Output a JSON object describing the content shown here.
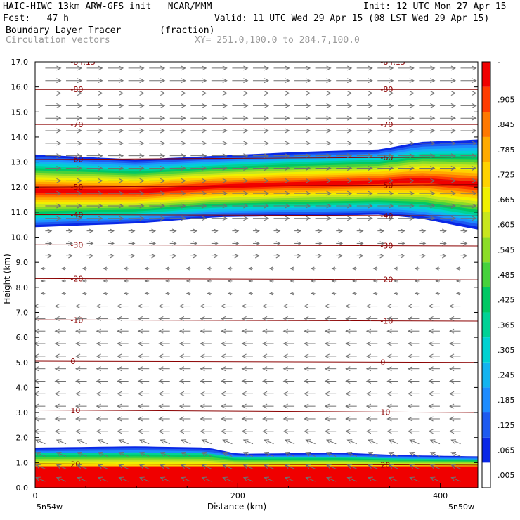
{
  "header": {
    "model_line": "HAIC-HIWC 13km ARW-GFS init   NCAR/MMM",
    "init": "Init: 12 UTC Mon 27 Apr 15",
    "fcst": "Fcst:   47 h",
    "valid": "Valid: 11 UTC Wed 29 Apr 15 (08 LST Wed 29 Apr 15)",
    "field": "Boundary Layer Tracer       (fraction)",
    "vectors": "Circulation vectors",
    "xy": "XY= 251.0,100.0 to 284.7,100.0"
  },
  "chart_data": {
    "type": "heatmap",
    "xlabel": "Distance (km)",
    "ylabel": "Height (km)",
    "xlim": [
      0,
      437
    ],
    "ylim": [
      0,
      17
    ],
    "xticks": [
      "0",
      "200",
      "400"
    ],
    "yticks": [
      "0.0",
      "1.0",
      "2.0",
      "3.0",
      "4.0",
      "5.0",
      "6.0",
      "7.0",
      "8.0",
      "9.0",
      "10.0",
      "11.0",
      "12.0",
      "13.0",
      "14.0",
      "15.0",
      "16.0",
      "17.0"
    ],
    "x_end_labels": [
      "5n54w",
      "5n50w"
    ],
    "colorbar_labels": [
      ".005",
      ".065",
      ".125",
      ".185",
      ".245",
      ".305",
      ".365",
      ".425",
      ".485",
      ".545",
      ".605",
      ".665",
      ".725",
      ".785",
      ".845",
      ".905",
      "-"
    ],
    "colorbar_colors": [
      "#ffffff",
      "#0a28e6",
      "#1e5af0",
      "#1e8cff",
      "#14b4f0",
      "#00d2d2",
      "#00d296",
      "#00c864",
      "#46d23c",
      "#8cdc28",
      "#c8e61e",
      "#f0f000",
      "#ffd200",
      "#ffaa00",
      "#ff7800",
      "#ff3c00",
      "#f00000"
    ],
    "tracer_layers": [
      {
        "name": "upper",
        "x": [
          0,
          100,
          180,
          260,
          340,
          380,
          437
        ],
        "bottom": [
          10.4,
          10.55,
          10.8,
          10.85,
          10.9,
          10.75,
          10.3
        ],
        "top": [
          13.3,
          13.1,
          13.25,
          13.4,
          13.5,
          13.8,
          13.9
        ],
        "peak": 1.0
      },
      {
        "name": "boundary",
        "x": [
          0,
          100,
          170,
          200,
          300,
          360,
          437
        ],
        "bottom": [
          0,
          0,
          0,
          0,
          0,
          0,
          0
        ],
        "top": [
          1.6,
          1.65,
          1.6,
          1.35,
          1.4,
          1.3,
          1.25
        ],
        "peak": 1.0
      }
    ],
    "temperature_contours": [
      {
        "label": "20",
        "y": [
          0.95,
          0.9
        ]
      },
      {
        "label": "10",
        "y": [
          3.1,
          3.0
        ]
      },
      {
        "label": "0",
        "y": [
          5.05,
          5.0
        ]
      },
      {
        "label": "-10",
        "y": [
          6.7,
          6.65
        ]
      },
      {
        "label": "-20",
        "y": [
          8.35,
          8.3
        ]
      },
      {
        "label": "-30",
        "y": [
          9.7,
          9.65
        ]
      },
      {
        "label": "-40",
        "y": [
          10.9,
          10.85
        ]
      },
      {
        "label": "-50",
        "y": [
          12.0,
          12.1
        ]
      },
      {
        "label": "-60",
        "y": [
          13.1,
          13.2
        ]
      },
      {
        "label": "-70",
        "y": [
          14.5,
          14.5
        ]
      },
      {
        "label": "-80",
        "y": [
          15.9,
          15.9
        ]
      },
      {
        "label": "-84.15",
        "y": [
          17.0,
          17.0
        ]
      }
    ],
    "wind_regimes": [
      {
        "ymin": 0.2,
        "ymax": 1.8,
        "u": -0.6,
        "w": 0.25
      },
      {
        "ymin": 1.8,
        "ymax": 7.6,
        "u": -0.7,
        "w": 0.0
      },
      {
        "ymin": 7.6,
        "ymax": 9.2,
        "u": -0.25,
        "w": 0.0
      },
      {
        "ymin": 9.2,
        "ymax": 10.6,
        "u": 0.4,
        "w": 0.0
      },
      {
        "ymin": 10.6,
        "ymax": 17.0,
        "u": 1.0,
        "w": 0.0
      }
    ]
  }
}
